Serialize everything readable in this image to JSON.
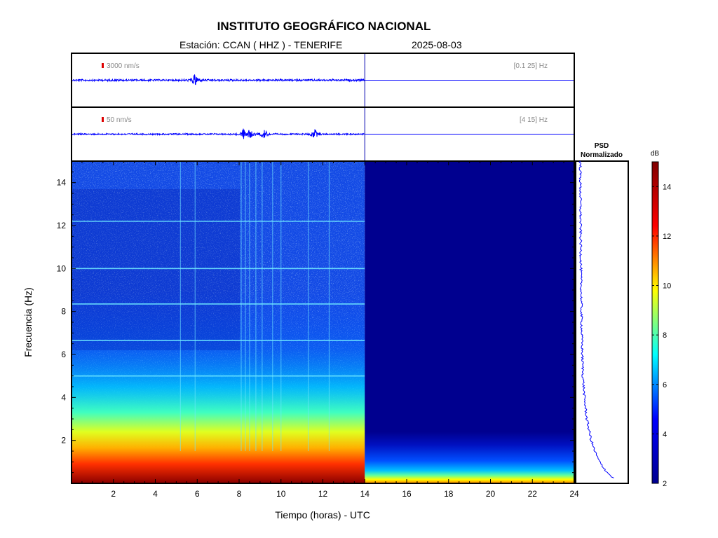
{
  "header": {
    "title": "INSTITUTO GEOGRÁFICO NACIONAL",
    "station": "Estación:  CCAN ( HHZ ) - TENERIFE",
    "date": "2025-08-03"
  },
  "chart_data": [
    {
      "type": "line",
      "name": "seismogram-broadband",
      "scale_label": "3000 nm/s",
      "band_label": "[0.1 25] Hz",
      "x_range_hours": [
        0,
        24
      ],
      "data_until_hours": 14,
      "scale_color": "#dd0000",
      "trace_color": "#0000ff"
    },
    {
      "type": "line",
      "name": "seismogram-filtered",
      "scale_label": "50 nm/s",
      "band_label": "[4 15] Hz",
      "x_range_hours": [
        0,
        24
      ],
      "data_until_hours": 14,
      "events_hours": [
        8.2,
        8.5,
        9.2,
        11.6
      ],
      "scale_color": "#dd0000",
      "trace_color": "#0000ff"
    },
    {
      "type": "heatmap",
      "name": "spectrogram",
      "xlabel": "Tiempo (horas) - UTC",
      "ylabel": "Frecuencia  (Hz)",
      "xlim": [
        0,
        24
      ],
      "ylim": [
        0,
        15
      ],
      "x_ticks": [
        2,
        4,
        6,
        8,
        10,
        12,
        14,
        16,
        18,
        20,
        22,
        24
      ],
      "y_ticks": [
        2,
        4,
        6,
        8,
        10,
        12,
        14
      ],
      "data_until_hours": 14,
      "harmonic_lines_hz": [
        12.2,
        10.0,
        8.35,
        6.65,
        5.0
      ],
      "vertical_features_hours": [
        5.2,
        5.9,
        8.1,
        8.3,
        8.5,
        8.8,
        9.1,
        9.6,
        10.0,
        11.3,
        12.3
      ]
    },
    {
      "type": "line",
      "name": "psd",
      "title": "PSD\nNormalizado",
      "freq_hz": [
        0.2,
        0.5,
        1,
        1.5,
        2,
        3,
        4,
        5,
        6,
        7,
        8,
        9,
        10,
        11,
        12,
        13,
        14,
        15
      ],
      "value": [
        1.0,
        0.8,
        0.57,
        0.43,
        0.33,
        0.2,
        0.13,
        0.09,
        0.07,
        0.055,
        0.045,
        0.038,
        0.03,
        0.025,
        0.02,
        0.017,
        0.014,
        0.012
      ],
      "trace_color": "#0000ff"
    },
    {
      "type": "heatmap",
      "name": "colorbar",
      "label": "dB",
      "range": [
        2,
        15
      ],
      "ticks": [
        2,
        4,
        6,
        8,
        10,
        12,
        14
      ],
      "colormap": [
        "#00008f",
        "#0000ff",
        "#00ffff",
        "#ffff00",
        "#ff0000",
        "#800000"
      ]
    }
  ]
}
